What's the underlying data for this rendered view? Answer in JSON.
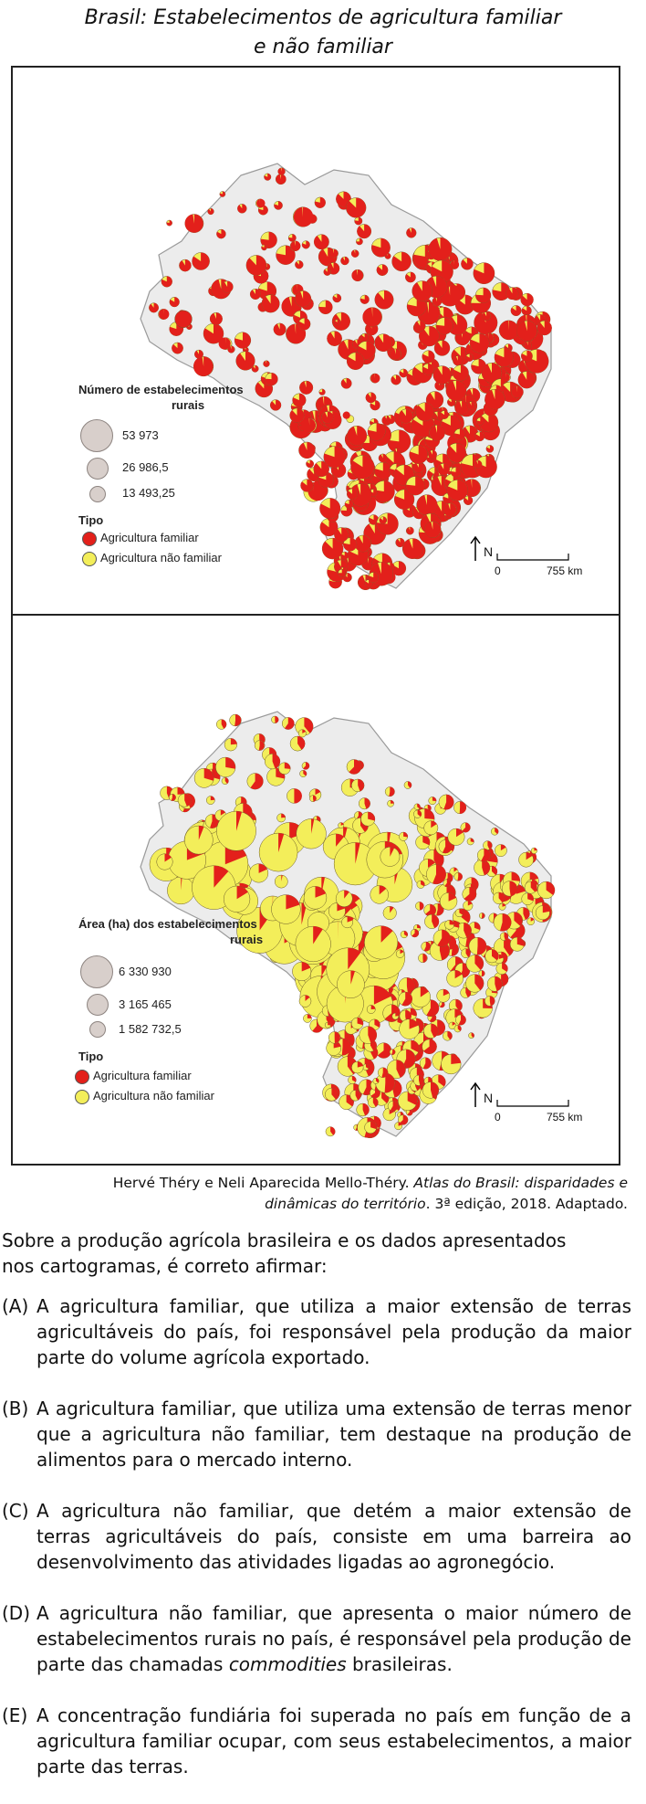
{
  "header": {
    "title_line1": "Brasil: Estabelecimentos de agricultura familiar",
    "title_line2": "e não familiar"
  },
  "map1": {
    "legend_title_line1": "Número de estabelecimentos",
    "legend_title_line2": "rurais",
    "sizes": [
      "53 973",
      "26 986,5",
      "13 493,25"
    ],
    "type_title": "Tipo",
    "type_familiar": "Agricultura familiar",
    "type_nao_familiar": "Agricultura não familiar",
    "north": "N",
    "scale_start": "0",
    "scale_end": "755 km"
  },
  "map2": {
    "legend_title_line1": "Área (ha) dos estabelecimentos",
    "legend_title_line2": "rurais",
    "sizes": [
      "6 330 930",
      "3 165 465",
      "1 582 732,5"
    ],
    "type_title": "Tipo",
    "type_familiar": "Agricultura familiar",
    "type_nao_familiar": "Agricultura não familiar",
    "north": "N",
    "scale_start": "0",
    "scale_end": "755 km"
  },
  "colors": {
    "familiar": "#e3201b",
    "nao_familiar": "#f3ee5a",
    "land": "#ececec",
    "size_symbol": "#d8cfcb"
  },
  "source": {
    "authors": "Hervé Théry e Neli Aparecida Mello-Théry. ",
    "book_line1": "Atlas do Brasil: disparidades e",
    "book_line2": "dinâmicas do território",
    "edition": ". 3ª edição, 2018. Adaptado."
  },
  "question": {
    "stem_line1": "Sobre a produção agrícola brasileira e os dados apresentados",
    "stem_line2": "nos cartogramas, é correto afirmar:",
    "options": [
      {
        "letter": "(A)",
        "text": "A agricultura familiar, que utiliza a maior extensão de terras agricultáveis do país, foi responsável pela produção da maior parte do volume agrícola exportado."
      },
      {
        "letter": "(B)",
        "text": "A agricultura familiar, que utiliza uma extensão de terras menor que a agricultura não familiar, tem destaque na produção de alimentos para o mercado interno."
      },
      {
        "letter": "(C)",
        "text": "A agricultura não familiar, que detém a maior extensão de terras agricultáveis do país, consiste em uma barreira ao desenvolvimento das atividades ligadas ao agronegócio."
      },
      {
        "letter": "(D)",
        "text_before": "A agricultura não familiar, que apresenta o maior número de estabelecimentos rurais no país, é responsável pela produção de parte das chamadas ",
        "text_italic": "commodities",
        "text_after": " brasileiras."
      },
      {
        "letter": "(E)",
        "text": "A concentração fundiária foi superada no país em função de a agricultura familiar ocupar, com seus estabelecimentos, a maior parte das terras."
      }
    ]
  }
}
